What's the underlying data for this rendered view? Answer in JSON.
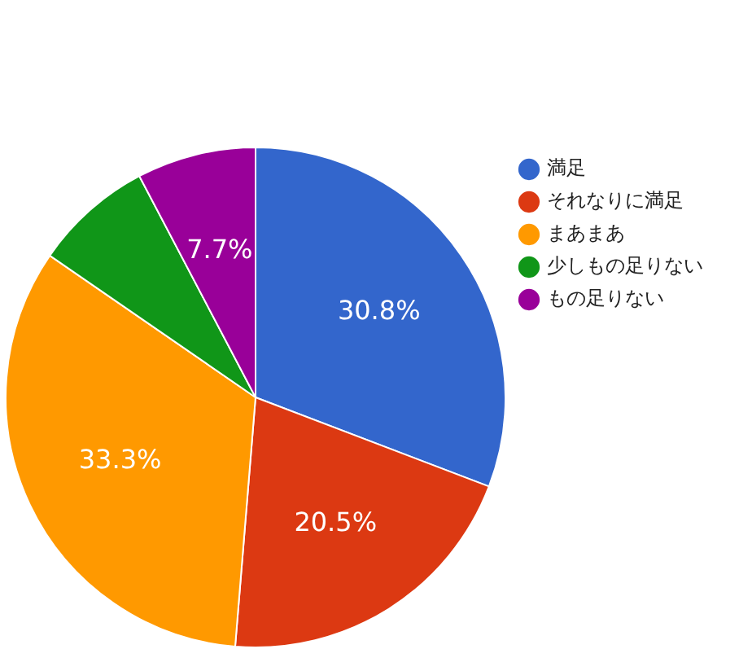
{
  "chart_data": {
    "type": "pie",
    "categories": [
      "満足",
      "それなりに満足",
      "まあまあ",
      "少しもの足りない",
      "もの足りない"
    ],
    "values": [
      30.8,
      20.5,
      33.3,
      7.7,
      7.7
    ],
    "colors": [
      "#3366cc",
      "#dc3912",
      "#ff9900",
      "#109618",
      "#990099"
    ],
    "value_labels": [
      "30.8%",
      "20.5%",
      "33.3%",
      null,
      "7.7%"
    ],
    "legend": "top right"
  }
}
